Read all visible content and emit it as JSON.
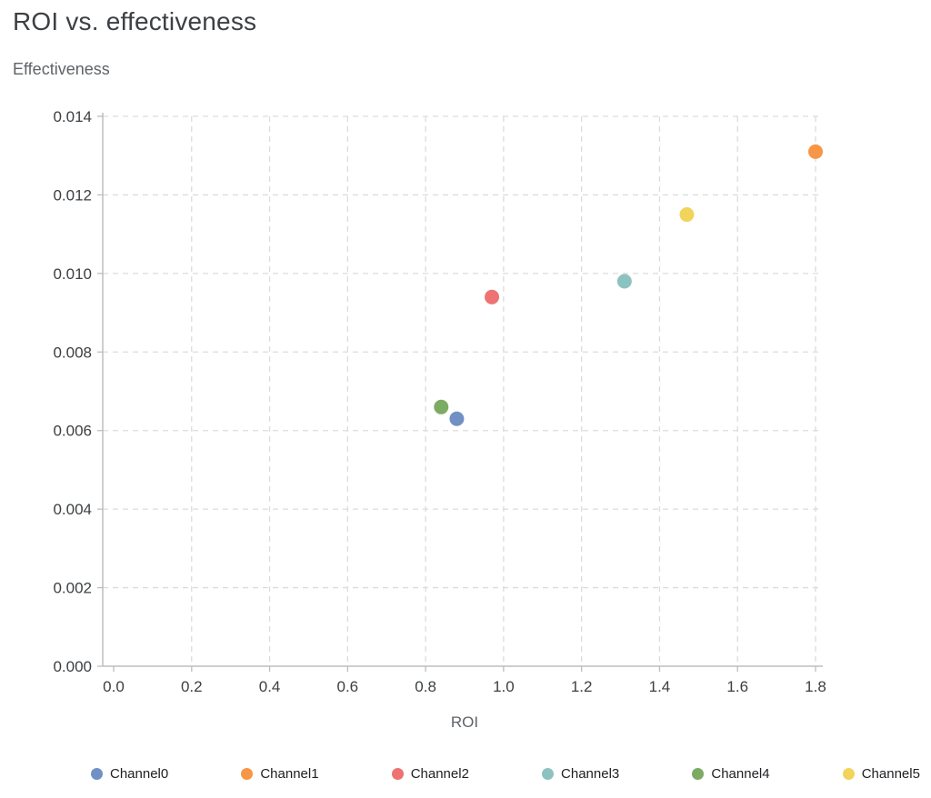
{
  "chart_data": {
    "type": "scatter",
    "title": "ROI vs. effectiveness",
    "xlabel": "ROI",
    "ylabel": "Effectiveness",
    "xlim": [
      0,
      1.8
    ],
    "ylim": [
      0,
      0.014
    ],
    "xticks": [
      0.0,
      0.2,
      0.4,
      0.6,
      0.8,
      1.0,
      1.2,
      1.4,
      1.6,
      1.8
    ],
    "xtick_labels": [
      "0.0",
      "0.2",
      "0.4",
      "0.6",
      "0.8",
      "1.0",
      "1.2",
      "1.4",
      "1.6",
      "1.8"
    ],
    "yticks": [
      0,
      0.002,
      0.004,
      0.006,
      0.008,
      0.01,
      0.012,
      0.014
    ],
    "ytick_labels": [
      "0.000",
      "0.002",
      "0.004",
      "0.006",
      "0.008",
      "0.010",
      "0.012",
      "0.014"
    ],
    "grid": "dashed",
    "legend_position": "bottom",
    "series": [
      {
        "name": "Channel0",
        "color": "#7191c4",
        "x": 0.88,
        "y": 0.0063
      },
      {
        "name": "Channel1",
        "color": "#f79646",
        "x": 1.8,
        "y": 0.0131
      },
      {
        "name": "Channel2",
        "color": "#ee7272",
        "x": 0.97,
        "y": 0.0094
      },
      {
        "name": "Channel3",
        "color": "#8cc3c0",
        "x": 1.31,
        "y": 0.0098
      },
      {
        "name": "Channel4",
        "color": "#7cab64",
        "x": 0.84,
        "y": 0.0066
      },
      {
        "name": "Channel5",
        "color": "#f2d45c",
        "x": 1.47,
        "y": 0.0115
      }
    ]
  }
}
